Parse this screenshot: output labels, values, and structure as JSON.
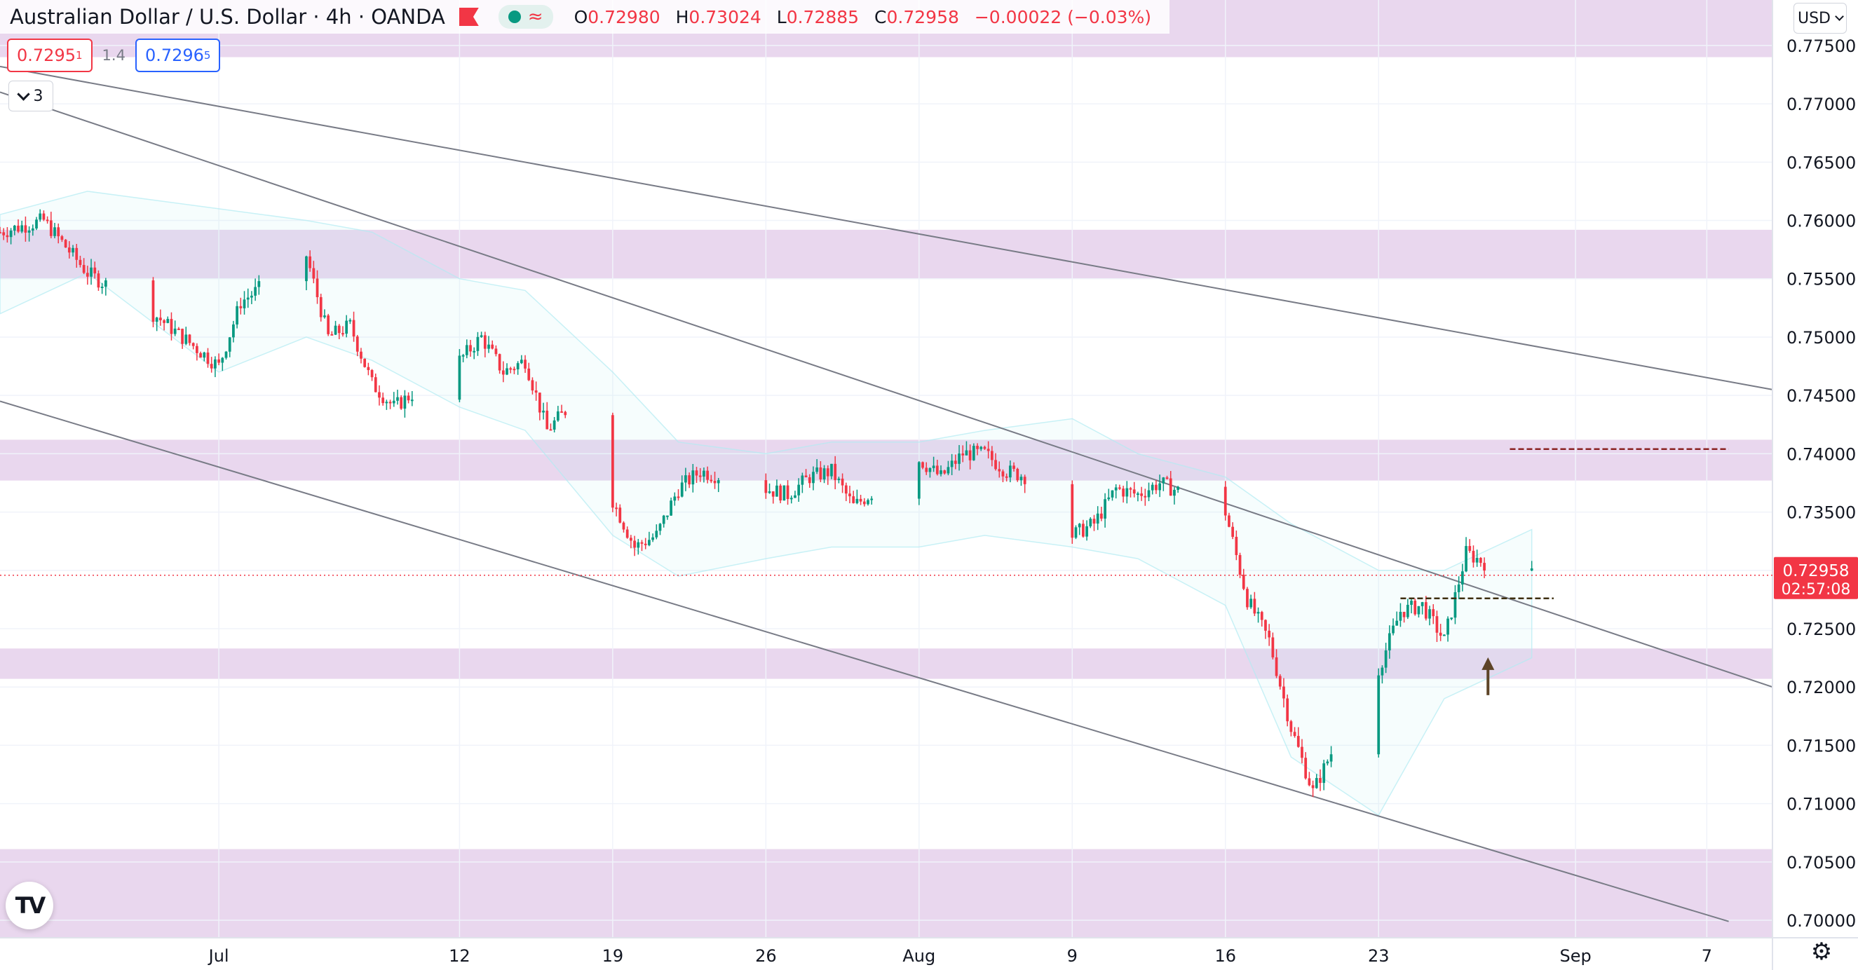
{
  "header": {
    "title": "Australian Dollar / U.S. Dollar · 4h · OANDA",
    "ohlc": {
      "o_label": "O",
      "o": "0.72980",
      "h_label": "H",
      "h": "0.73024",
      "l_label": "L",
      "l": "0.72885",
      "c_label": "C",
      "c": "0.72958",
      "change": "−0.00022 (−0.03%)"
    },
    "icons": [
      "flag-icon",
      "status-dot-icon",
      "indicator-wave-icon"
    ],
    "colors": {
      "down": "#f23645",
      "up": "#089981",
      "zone": "#e7d3ec",
      "band": "#b2ebf2"
    }
  },
  "quotes": {
    "sell_main": "0.7295",
    "sell_pip": "1",
    "spread": "1.4",
    "buy_main": "0.7296",
    "buy_pip": "5"
  },
  "indicators_toggle": {
    "count": "3"
  },
  "currency_selector": {
    "value": "USD"
  },
  "logo": {
    "text": "TV"
  },
  "chart_data": {
    "type": "candlestick",
    "symbol": "Australian Dollar / U.S. Dollar",
    "timeframe": "4h",
    "broker": "OANDA",
    "y_axis": {
      "ticks": [
        "0.77500",
        "0.77000",
        "0.76500",
        "0.76000",
        "0.75500",
        "0.75000",
        "0.74500",
        "0.74000",
        "0.73500",
        "0.73000",
        "0.72500",
        "0.72000",
        "0.71500",
        "0.71000",
        "0.70500",
        "0.70000"
      ],
      "ylim": [
        0.6985,
        0.7789
      ]
    },
    "x_axis": {
      "ticks": [
        {
          "label": "Jul",
          "date": "2021-07-01"
        },
        {
          "label": "12",
          "date": "2021-07-12"
        },
        {
          "label": "19",
          "date": "2021-07-19"
        },
        {
          "label": "26",
          "date": "2021-07-26"
        },
        {
          "label": "Aug",
          "date": "2021-08-02"
        },
        {
          "label": "9",
          "date": "2021-08-09"
        },
        {
          "label": "16",
          "date": "2021-08-16"
        },
        {
          "label": "23",
          "date": "2021-08-23"
        },
        {
          "label": "Sep",
          "date": "2021-09-01"
        },
        {
          "label": "7",
          "date": "2021-09-07"
        }
      ],
      "xlim": [
        "2021-06-21",
        "2021-09-10"
      ]
    },
    "grid": true,
    "last_price": {
      "value": "0.72958",
      "countdown": "02:57:08",
      "price": 0.72958
    },
    "zones": [
      {
        "from": 0.774,
        "to": 0.779
      },
      {
        "from": 0.755,
        "to": 0.7592
      },
      {
        "from": 0.7377,
        "to": 0.7412
      },
      {
        "from": 0.7207,
        "to": 0.7233
      },
      {
        "from": 0.6985,
        "to": 0.7061
      }
    ],
    "trendlines": [
      {
        "p1": [
          "2021-06-21",
          0.7732
        ],
        "p2": [
          "2021-09-10",
          0.7455
        ]
      },
      {
        "p1": [
          "2021-06-21",
          0.771
        ],
        "p2": [
          "2021-09-10",
          0.72
        ]
      },
      {
        "p1": [
          "2021-06-21",
          0.7445
        ],
        "p2": [
          "2021-09-08",
          0.6999
        ]
      }
    ],
    "levels": [
      {
        "price": 0.7404,
        "from": "2021-08-29",
        "to": "2021-09-08",
        "color": "#8b2323",
        "style": "dashed"
      },
      {
        "price": 0.7276,
        "from": "2021-08-24",
        "to": "2021-08-31",
        "color": "#3e2f10",
        "style": "dashed"
      }
    ],
    "arrow": {
      "date": "2021-08-28",
      "from": 0.7193,
      "to": 0.7223
    },
    "bollinger": {
      "x": [
        "2021-06-21",
        "2021-06-25",
        "2021-07-01",
        "2021-07-05",
        "2021-07-08",
        "2021-07-12",
        "2021-07-15",
        "2021-07-19",
        "2021-07-22",
        "2021-07-26",
        "2021-07-29",
        "2021-08-02",
        "2021-08-05",
        "2021-08-09",
        "2021-08-12",
        "2021-08-16",
        "2021-08-19",
        "2021-08-23",
        "2021-08-26",
        "2021-08-30"
      ],
      "upper": [
        0.7605,
        0.7625,
        0.761,
        0.76,
        0.759,
        0.755,
        0.754,
        0.747,
        0.741,
        0.74,
        0.741,
        0.741,
        0.742,
        0.743,
        0.74,
        0.738,
        0.734,
        0.73,
        0.73,
        0.7335
      ],
      "lower": [
        0.752,
        0.7555,
        0.747,
        0.75,
        0.748,
        0.744,
        0.742,
        0.733,
        0.7295,
        0.731,
        0.732,
        0.732,
        0.733,
        0.732,
        0.731,
        0.727,
        0.714,
        0.709,
        0.719,
        0.7225
      ]
    },
    "series": [
      {
        "x": [
          "2021-06-21",
          "2021-06-23",
          "2021-06-25",
          "2021-06-28",
          "2021-06-30",
          "2021-07-01",
          "2021-07-02",
          "2021-07-05",
          "2021-07-06",
          "2021-07-07",
          "2021-07-08",
          "2021-07-09",
          "2021-07-12",
          "2021-07-13",
          "2021-07-14",
          "2021-07-15",
          "2021-07-16",
          "2021-07-17",
          "2021-07-19",
          "2021-07-20",
          "2021-07-21",
          "2021-07-22",
          "2021-07-23",
          "2021-07-26",
          "2021-07-27",
          "2021-07-28",
          "2021-07-29",
          "2021-07-30",
          "2021-08-02",
          "2021-08-03",
          "2021-08-04",
          "2021-08-05",
          "2021-08-06",
          "2021-08-07",
          "2021-08-09",
          "2021-08-10",
          "2021-08-11",
          "2021-08-12",
          "2021-08-13",
          "2021-08-16",
          "2021-08-17",
          "2021-08-18",
          "2021-08-19",
          "2021-08-20",
          "2021-08-21",
          "2021-08-23",
          "2021-08-24",
          "2021-08-25",
          "2021-08-26",
          "2021-08-27",
          "2021-08-28",
          "2021-08-29",
          "2021-08-30"
        ],
        "close": [
          0.759,
          0.76,
          0.7555,
          0.752,
          0.749,
          0.7475,
          0.753,
          0.757,
          0.75,
          0.751,
          0.746,
          0.744,
          0.748,
          0.75,
          0.747,
          0.748,
          0.742,
          0.744,
          0.736,
          0.732,
          0.733,
          0.737,
          0.7385,
          0.737,
          0.7365,
          0.738,
          0.7385,
          0.7355,
          0.7395,
          0.738,
          0.74,
          0.74,
          0.7385,
          0.738,
          0.733,
          0.734,
          0.737,
          0.7365,
          0.7375,
          0.735,
          0.7275,
          0.724,
          0.7165,
          0.711,
          0.715,
          0.7215,
          0.7265,
          0.727,
          0.724,
          0.7315,
          0.7305,
          0.7292,
          0.7296
        ]
      }
    ]
  }
}
